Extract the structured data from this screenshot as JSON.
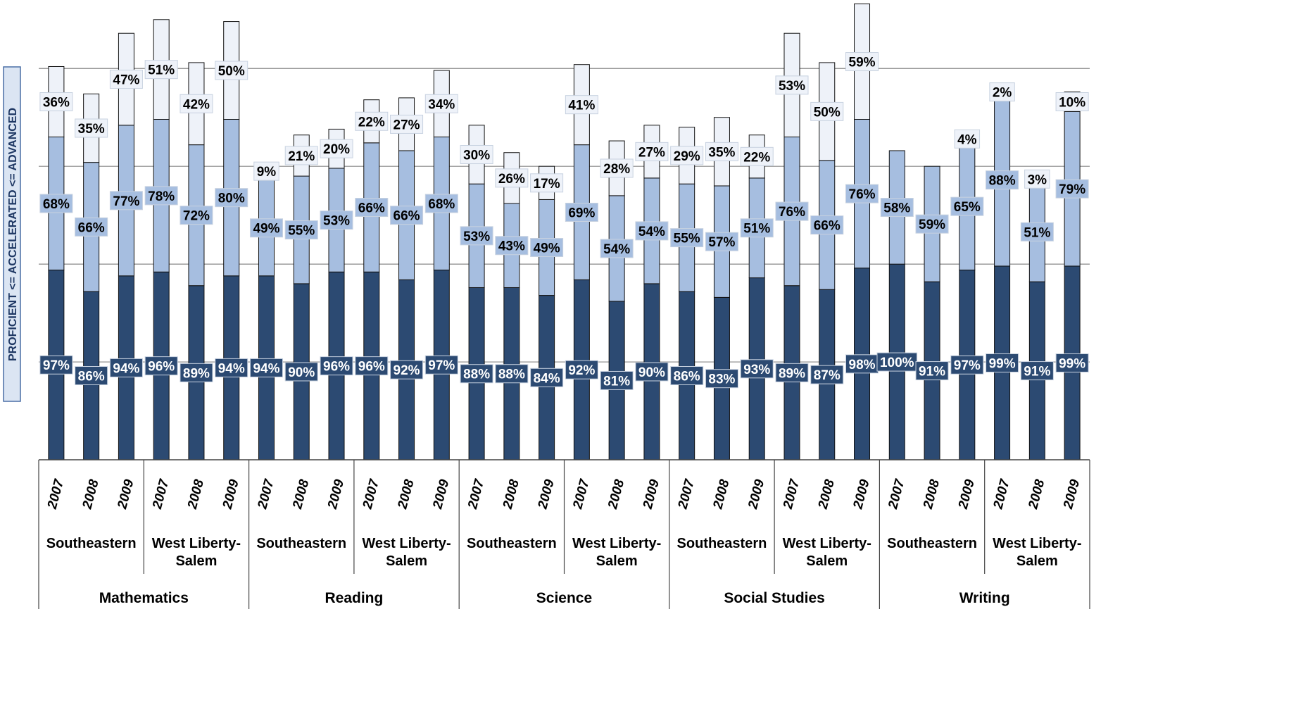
{
  "chart_data": {
    "type": "bar",
    "stacked": true,
    "y_label": "PROFICIENT <= ACCELERATED <= ADVANCED",
    "categories": [
      "2007",
      "2008",
      "2009",
      "2007",
      "2008",
      "2009",
      "2007",
      "2008",
      "2009",
      "2007",
      "2008",
      "2009",
      "2007",
      "2008",
      "2009",
      "2007",
      "2008",
      "2009",
      "2007",
      "2008",
      "2009",
      "2007",
      "2008",
      "2009",
      "2007",
      "2008",
      "2009",
      "2007",
      "2008",
      "2009"
    ],
    "schools": [
      "Southeastern",
      "West Liberty-Salem",
      "Southeastern",
      "West Liberty-Salem",
      "Southeastern",
      "West Liberty-Salem",
      "Southeastern",
      "West Liberty-Salem",
      "Southeastern",
      "West Liberty-Salem"
    ],
    "subjects": [
      "Mathematics",
      "Reading",
      "Science",
      "Social Studies",
      "Writing"
    ],
    "series": [
      {
        "color": "#2c4a72",
        "values": [
          97,
          86,
          94,
          96,
          89,
          94,
          94,
          90,
          96,
          96,
          92,
          97,
          88,
          88,
          84,
          92,
          81,
          90,
          86,
          83,
          93,
          89,
          87,
          98,
          100,
          91,
          97,
          99,
          91,
          99
        ],
        "value_labels": [
          "97%",
          "86%",
          "94%",
          "96%",
          "89%",
          "94%",
          "94%",
          "90%",
          "96%",
          "96%",
          "92%",
          "97%",
          "88%",
          "88%",
          "84%",
          "92%",
          "81%",
          "90%",
          "86%",
          "83%",
          "93%",
          "89%",
          "87%",
          "98%",
          "100%",
          "91%",
          "97%",
          "99%",
          "91%",
          "99%"
        ]
      },
      {
        "color": "#a6bee0",
        "values": [
          68,
          66,
          77,
          78,
          72,
          80,
          49,
          55,
          53,
          66,
          66,
          68,
          53,
          43,
          49,
          69,
          54,
          54,
          55,
          57,
          51,
          76,
          66,
          76,
          58,
          59,
          65,
          88,
          51,
          79
        ],
        "value_labels": [
          "68%",
          "66%",
          "77%",
          "78%",
          "72%",
          "80%",
          "49%",
          "55%",
          "53%",
          "66%",
          "66%",
          "68%",
          "53%",
          "43%",
          "49%",
          "69%",
          "54%",
          "54%",
          "55%",
          "57%",
          "51%",
          "76%",
          "66%",
          "76%",
          "58%",
          "59%",
          "65%",
          "88%",
          "51%",
          "79%"
        ]
      },
      {
        "color": "#eef2f9",
        "values": [
          36,
          35,
          47,
          51,
          42,
          50,
          9,
          21,
          20,
          22,
          27,
          34,
          30,
          26,
          17,
          41,
          28,
          27,
          29,
          35,
          22,
          53,
          50,
          59,
          null,
          null,
          4,
          2,
          3,
          10
        ],
        "value_labels": [
          "36%",
          "35%",
          "47%",
          "51%",
          "42%",
          "50%",
          "9%",
          "21%",
          "20%",
          "22%",
          "27%",
          "34%",
          "30%",
          "26%",
          "17%",
          "41%",
          "28%",
          "27%",
          "29%",
          "35%",
          "22%",
          "53%",
          "50%",
          "59%",
          null,
          null,
          "4%",
          "2%",
          "3%",
          "10%"
        ]
      }
    ],
    "ylim": [
      0,
      235
    ],
    "yticks": [
      50,
      100,
      150,
      200
    ],
    "grid": true
  }
}
